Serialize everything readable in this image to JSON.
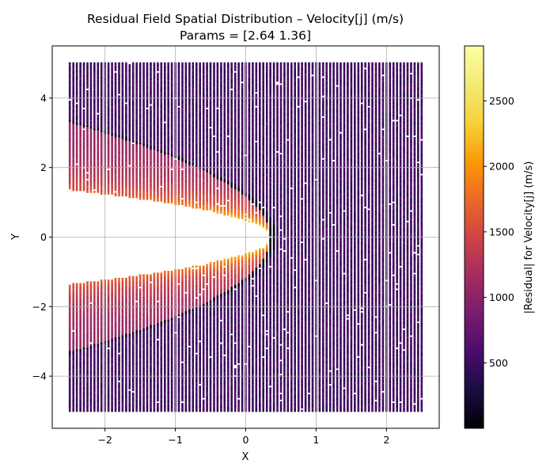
{
  "chart_data": {
    "type": "scatter",
    "title": "Residual Field Spatial Distribution – Velocity[j] (m/s)",
    "subtitle": "Params = [2.64 1.36]",
    "xlabel": "X",
    "ylabel": "Y",
    "xlim": [
      -2.75,
      2.75
    ],
    "ylim": [
      -5.5,
      5.5
    ],
    "xticks": [
      -2,
      -1,
      0,
      1,
      2
    ],
    "xtick_labels": [
      "−2",
      "−1",
      "0",
      "1",
      "2"
    ],
    "yticks": [
      -4,
      -2,
      0,
      2,
      4
    ],
    "ytick_labels": [
      "−4",
      "−2",
      "0",
      "2",
      "4"
    ],
    "grid": true,
    "colormap": "inferno",
    "colorbar": {
      "label": "|Residual| for Velocity[j] (m/s)",
      "range": [
        0,
        2920
      ],
      "ticks": [
        500,
        1000,
        1500,
        2000,
        2500
      ],
      "tick_labels": [
        "500",
        "1000",
        "1500",
        "2000",
        "2500"
      ]
    },
    "domain": {
      "x": [
        -2.5,
        2.5
      ],
      "y": [
        -5.0,
        5.0
      ]
    },
    "void_region": {
      "shape": "parabola",
      "vertex_x": 0.35,
      "half_height_at_left_edge": 1.36
    },
    "shock_line": {
      "shape": "parabola",
      "vertex_x": 0.35,
      "half_height_at_left_edge": 3.3
    },
    "background_residual": [
      350,
      1000
    ],
    "peak_residual": 2900
  }
}
